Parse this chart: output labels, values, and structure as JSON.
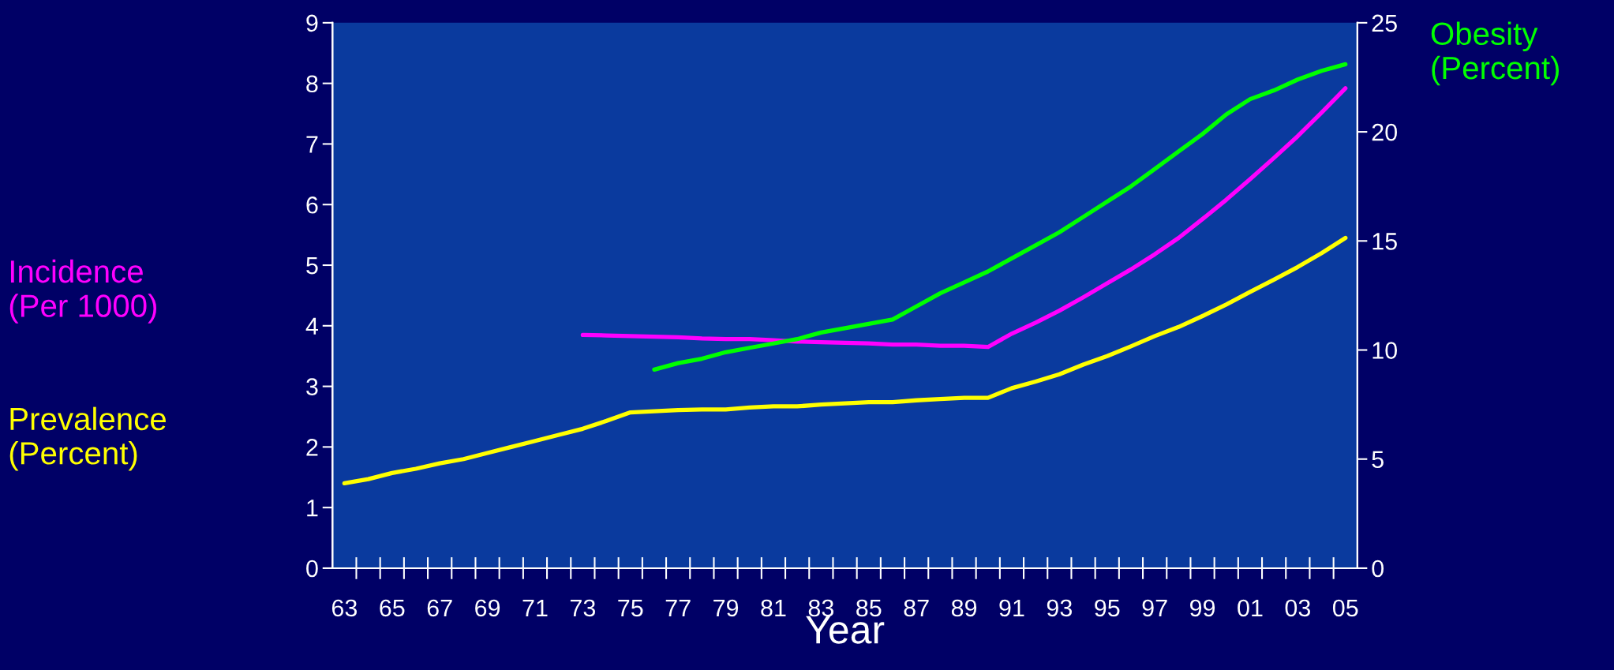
{
  "chart_data": {
    "type": "line",
    "xlabel": "Year",
    "categories": [
      "63",
      null,
      "65",
      null,
      "67",
      null,
      "69",
      null,
      "71",
      null,
      "73",
      null,
      "75",
      null,
      "77",
      null,
      "79",
      null,
      "81",
      null,
      "83",
      null,
      "85",
      null,
      "87",
      null,
      "89",
      null,
      "91",
      null,
      "93",
      null,
      "95",
      null,
      "97",
      null,
      "99",
      null,
      "01",
      null,
      "03",
      null,
      "05"
    ],
    "ylim": [
      0,
      9
    ],
    "yticks": [
      0,
      1,
      2,
      3,
      4,
      5,
      6,
      7,
      8,
      9
    ],
    "y2lim": [
      0,
      25
    ],
    "y2ticks": [
      0,
      5,
      10,
      15,
      20,
      25
    ],
    "grid": false,
    "legend": false,
    "marker": "none",
    "line_style": "solid",
    "series": [
      {
        "name": "Incidence\n(Per 1000)",
        "color": "#ff00ff",
        "values": [
          null,
          null,
          null,
          null,
          null,
          null,
          null,
          null,
          null,
          null,
          3.85,
          3.84,
          3.83,
          3.82,
          3.81,
          3.79,
          3.78,
          3.78,
          3.76,
          3.74,
          3.73,
          3.72,
          3.71,
          3.69,
          3.69,
          3.67,
          3.67,
          3.65,
          3.87,
          4.05,
          4.25,
          4.47,
          4.7,
          4.93,
          5.18,
          5.45,
          5.76,
          6.08,
          6.42,
          6.77,
          7.13,
          7.52,
          7.92
        ]
      },
      {
        "name": "Prevalence\n(Percent)",
        "color": "#ffff00",
        "values": [
          1.4,
          1.47,
          1.57,
          1.64,
          1.73,
          1.8,
          1.9,
          2.0,
          2.1,
          2.2,
          2.3,
          2.43,
          2.57,
          2.59,
          2.61,
          2.62,
          2.62,
          2.65,
          2.67,
          2.67,
          2.7,
          2.72,
          2.74,
          2.74,
          2.77,
          2.79,
          2.81,
          2.81,
          2.97,
          3.08,
          3.2,
          3.36,
          3.5,
          3.66,
          3.83,
          3.98,
          4.16,
          4.35,
          4.56,
          4.76,
          4.97,
          5.2,
          5.45
        ]
      },
      {
        "name": "Obesity\n(Percent)",
        "color": "#00ff00",
        "axis": "y2",
        "values": [
          null,
          null,
          null,
          null,
          null,
          null,
          null,
          null,
          null,
          null,
          null,
          null,
          null,
          9.1,
          9.4,
          9.6,
          9.9,
          10.1,
          10.3,
          10.5,
          10.8,
          11.0,
          11.2,
          11.4,
          12.0,
          12.6,
          13.1,
          13.6,
          14.2,
          14.8,
          15.4,
          16.1,
          16.8,
          17.5,
          18.3,
          19.1,
          19.9,
          20.8,
          21.5,
          21.9,
          22.4,
          22.8,
          23.1
        ]
      }
    ]
  }
}
